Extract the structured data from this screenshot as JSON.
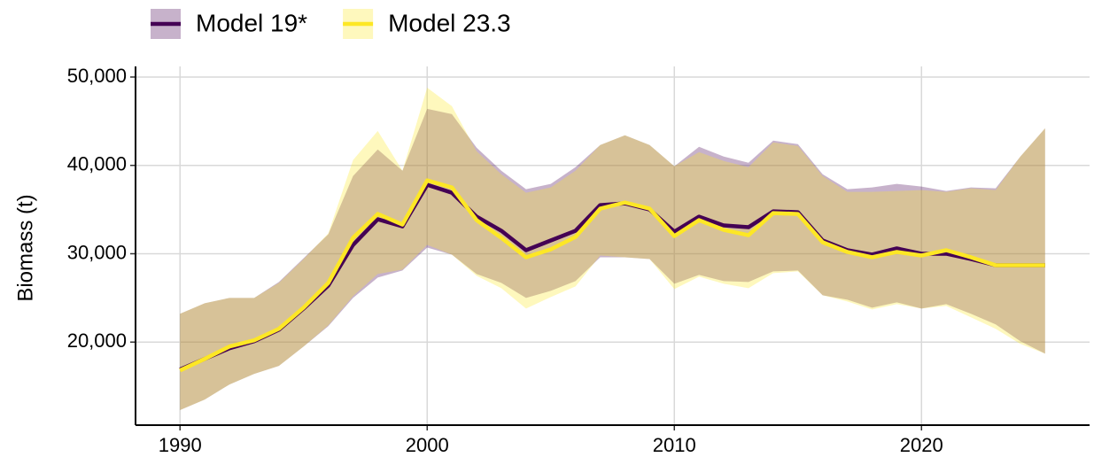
{
  "chart_data": {
    "type": "line",
    "y_label": "Biomass (t)",
    "x": [
      1990,
      1991,
      1992,
      1993,
      1994,
      1995,
      1996,
      1997,
      1998,
      1999,
      2000,
      2001,
      2002,
      2003,
      2004,
      2005,
      2006,
      2007,
      2008,
      2009,
      2010,
      2011,
      2012,
      2013,
      2014,
      2015,
      2016,
      2017,
      2018,
      2019,
      2020,
      2021,
      2022,
      2023,
      2024,
      2025
    ],
    "xlim": [
      1988.2,
      2026.8
    ],
    "xticks": [
      1990,
      2000,
      2010,
      2020
    ],
    "ylim": [
      10600,
      51200
    ],
    "yticks": [
      {
        "value": 20000,
        "label": "20,000"
      },
      {
        "value": 30000,
        "label": "30,000"
      },
      {
        "value": 40000,
        "label": "40,000"
      },
      {
        "value": 50000,
        "label": "50,000"
      }
    ],
    "grid": true,
    "legend": "top",
    "series": [
      {
        "name": "Model 19*",
        "color": "#440154",
        "values": [
          16900,
          18100,
          19300,
          20100,
          21400,
          23800,
          26400,
          31000,
          33900,
          33100,
          37800,
          36900,
          34200,
          32600,
          30400,
          31500,
          32600,
          35500,
          35700,
          35000,
          32500,
          34200,
          33200,
          33000,
          34800,
          34700,
          31500,
          30400,
          29900,
          30600,
          30000,
          30000,
          29400,
          28700,
          28700,
          28700
        ],
        "upper": [
          23200,
          24400,
          25000,
          25000,
          26800,
          29500,
          32200,
          38800,
          41800,
          39400,
          46400,
          45800,
          42000,
          39400,
          37300,
          37900,
          39800,
          42300,
          43400,
          42300,
          39900,
          42100,
          41000,
          40300,
          42800,
          42400,
          39000,
          37300,
          37500,
          37900,
          37600,
          37100,
          37500,
          37400,
          41000,
          44200
        ],
        "lower": [
          12300,
          13500,
          15200,
          16400,
          17300,
          19500,
          21800,
          25000,
          27300,
          28100,
          30700,
          29900,
          27700,
          26700,
          25000,
          25800,
          26900,
          29600,
          29600,
          29400,
          26600,
          27600,
          26900,
          26800,
          28000,
          28100,
          25300,
          24800,
          23900,
          24500,
          23800,
          24300,
          23200,
          22000,
          20100,
          18700
        ]
      },
      {
        "name": "Model 23.3",
        "color": "#FDE725",
        "values": [
          16800,
          18100,
          19500,
          20200,
          21500,
          23900,
          26700,
          31800,
          34500,
          33300,
          38300,
          37500,
          33800,
          31800,
          29600,
          30500,
          31900,
          35100,
          35800,
          35100,
          32000,
          33800,
          32700,
          32100,
          34600,
          34500,
          31300,
          30200,
          29600,
          30200,
          29800,
          30400,
          29600,
          28700,
          28700,
          28700
        ],
        "upper": [
          23200,
          24400,
          25000,
          25000,
          26700,
          29400,
          32300,
          40600,
          43900,
          39400,
          48800,
          46700,
          41600,
          39000,
          36900,
          37500,
          39400,
          42300,
          43400,
          42300,
          39900,
          41500,
          40500,
          39800,
          42600,
          42200,
          38800,
          37000,
          37000,
          37100,
          37200,
          37000,
          37400,
          37200,
          41000,
          44200
        ],
        "lower": [
          12300,
          13500,
          15200,
          16400,
          17300,
          19500,
          21900,
          25200,
          27700,
          28200,
          31000,
          29900,
          27500,
          26100,
          23800,
          25100,
          26300,
          29800,
          29600,
          29400,
          26000,
          27400,
          26600,
          26100,
          27800,
          28000,
          25300,
          24600,
          23700,
          24300,
          23800,
          24100,
          22800,
          21500,
          19800,
          18700
        ]
      }
    ]
  }
}
